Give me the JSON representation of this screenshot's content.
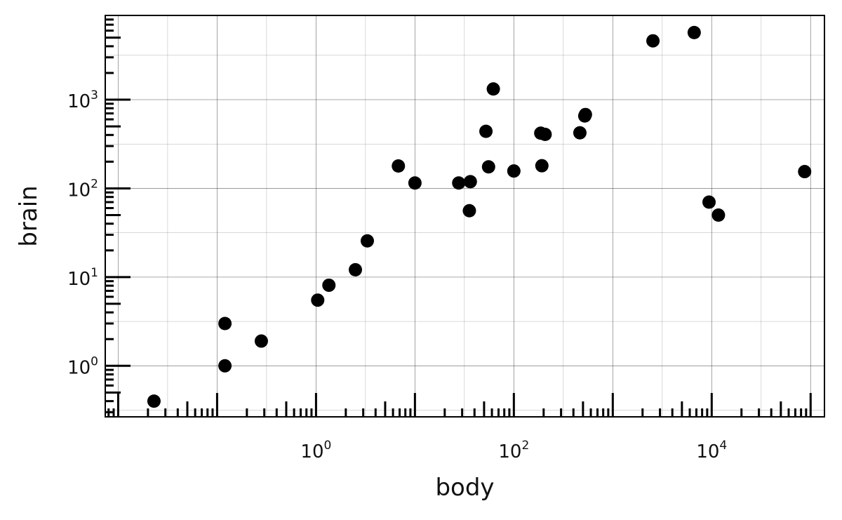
{
  "chart_data": {
    "type": "scatter",
    "title": "",
    "xlabel": "body",
    "ylabel": "brain",
    "xscale": "log",
    "yscale": "log",
    "xlim": [
      0.0074,
      138000
    ],
    "ylim": [
      0.266,
      8900
    ],
    "grid": true,
    "legend": "none",
    "x_ticks": [
      {
        "base": "10",
        "exp": "0",
        "value": 1
      },
      {
        "base": "10",
        "exp": "2",
        "value": 100
      },
      {
        "base": "10",
        "exp": "4",
        "value": 10000
      }
    ],
    "y_ticks": [
      {
        "base": "10",
        "exp": "0",
        "value": 1
      },
      {
        "base": "10",
        "exp": "1",
        "value": 10
      },
      {
        "base": "10",
        "exp": "2",
        "value": 100
      },
      {
        "base": "10",
        "exp": "3",
        "value": 1000
      }
    ],
    "rug": true,
    "point_color": "#000000",
    "points": [
      {
        "x": 0.023,
        "y": 0.4
      },
      {
        "x": 0.12,
        "y": 1.0
      },
      {
        "x": 0.12,
        "y": 3.0
      },
      {
        "x": 0.28,
        "y": 1.9
      },
      {
        "x": 1.04,
        "y": 5.5
      },
      {
        "x": 1.35,
        "y": 8.1
      },
      {
        "x": 2.5,
        "y": 12.1
      },
      {
        "x": 3.3,
        "y": 25.6
      },
      {
        "x": 6.8,
        "y": 179
      },
      {
        "x": 10.0,
        "y": 115
      },
      {
        "x": 27.7,
        "y": 115
      },
      {
        "x": 35.5,
        "y": 56
      },
      {
        "x": 36.3,
        "y": 119
      },
      {
        "x": 52.2,
        "y": 440
      },
      {
        "x": 55.5,
        "y": 175
      },
      {
        "x": 62,
        "y": 1320
      },
      {
        "x": 100,
        "y": 157
      },
      {
        "x": 187,
        "y": 419
      },
      {
        "x": 207,
        "y": 406
      },
      {
        "x": 192,
        "y": 180
      },
      {
        "x": 465,
        "y": 423
      },
      {
        "x": 521,
        "y": 655
      },
      {
        "x": 529,
        "y": 680
      },
      {
        "x": 2547,
        "y": 4603
      },
      {
        "x": 6654,
        "y": 5712
      },
      {
        "x": 9400,
        "y": 70
      },
      {
        "x": 11700,
        "y": 50
      },
      {
        "x": 87000,
        "y": 154.5
      }
    ]
  }
}
